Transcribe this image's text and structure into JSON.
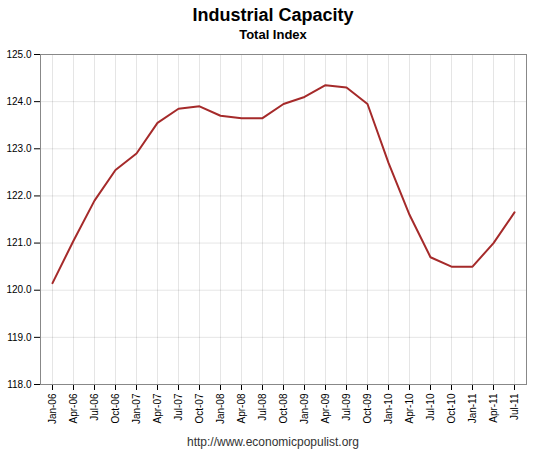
{
  "chart_data": {
    "type": "line",
    "title": "Industrial Capacity",
    "subtitle": "Total Index",
    "footer": "http://www.economicpopulist.org",
    "categories": [
      "Jan-06",
      "Apr-06",
      "Jul-06",
      "Oct-06",
      "Jan-07",
      "Apr-07",
      "Jul-07",
      "Oct-07",
      "Jan-08",
      "Apr-08",
      "Jul-08",
      "Oct-08",
      "Jan-09",
      "Apr-09",
      "Jul-09",
      "Oct-09",
      "Jan-10",
      "Apr-10",
      "Jul-10",
      "Oct-10",
      "Jan-11",
      "Apr-11",
      "Jul-11"
    ],
    "values": [
      120.15,
      121.05,
      121.9,
      122.55,
      122.9,
      123.55,
      123.85,
      123.9,
      123.7,
      123.65,
      123.65,
      123.95,
      124.1,
      124.35,
      124.3,
      123.95,
      122.7,
      121.6,
      120.7,
      120.5,
      120.5,
      121.0,
      121.65
    ],
    "color": "#a52a2a",
    "ylim": [
      118,
      125
    ],
    "yticks": [
      118,
      119,
      120,
      121,
      122,
      123,
      124,
      125
    ],
    "grid": true
  }
}
